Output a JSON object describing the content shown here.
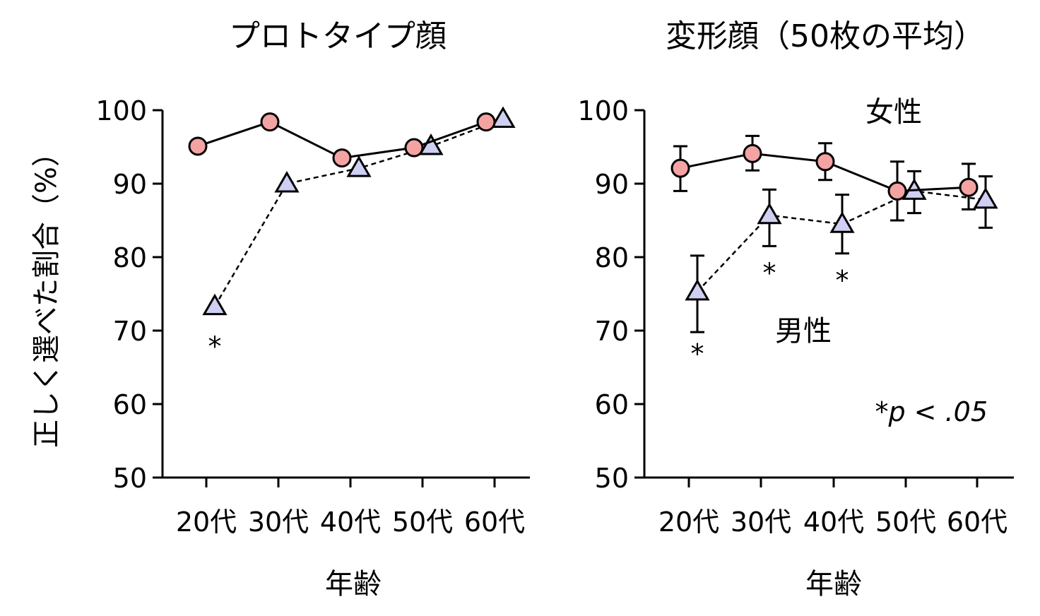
{
  "ylabel": "正しく選べた割合（%）",
  "colors": {
    "female": "#f4a3a3",
    "male": "#cfcff3"
  },
  "chart_data": [
    {
      "type": "line",
      "title": "プロトタイプ顔",
      "xlabel": "年齢",
      "categories": [
        "20代",
        "30代",
        "40代",
        "50代",
        "60代"
      ],
      "ylim": [
        50,
        100
      ],
      "yticks": [
        "50",
        "60",
        "70",
        "80",
        "90",
        "100"
      ],
      "series": [
        {
          "marker": "circle",
          "values": [
            95.1,
            98.4,
            93.5,
            94.9,
            98.4
          ]
        },
        {
          "marker": "triangle",
          "values": [
            73.3,
            90.0,
            92.1,
            95.1,
            98.8
          ]
        }
      ],
      "annotations": [
        {
          "text": "*",
          "category": "20代",
          "y": 68.5
        }
      ]
    },
    {
      "type": "line",
      "title": "変形顔（50枚の平均）",
      "xlabel": "年齢",
      "categories": [
        "20代",
        "30代",
        "40代",
        "50代",
        "60代"
      ],
      "ylim": [
        50,
        100
      ],
      "yticks": [
        "50",
        "60",
        "70",
        "80",
        "90",
        "100"
      ],
      "series": [
        {
          "name": "女性",
          "marker": "circle",
          "values": [
            92.1,
            94.1,
            93.0,
            89.0,
            89.5
          ],
          "err_low": [
            89.0,
            91.8,
            90.5,
            85.0,
            86.5
          ],
          "err_high": [
            95.1,
            96.5,
            95.5,
            93.0,
            92.7
          ]
        },
        {
          "name": "男性",
          "marker": "triangle",
          "values": [
            75.3,
            85.7,
            84.5,
            89.0,
            87.8
          ],
          "err_low": [
            69.8,
            81.5,
            80.5,
            86.0,
            84.0
          ],
          "err_high": [
            80.2,
            89.2,
            88.5,
            91.7,
            91.0
          ]
        }
      ],
      "annotations": [
        {
          "text": "*",
          "category": "20代",
          "y": 67.5
        },
        {
          "text": "*",
          "category": "30代",
          "y": 78.5
        },
        {
          "text": "*",
          "category": "40代",
          "y": 77.5
        }
      ],
      "note": "*p < .05"
    }
  ]
}
